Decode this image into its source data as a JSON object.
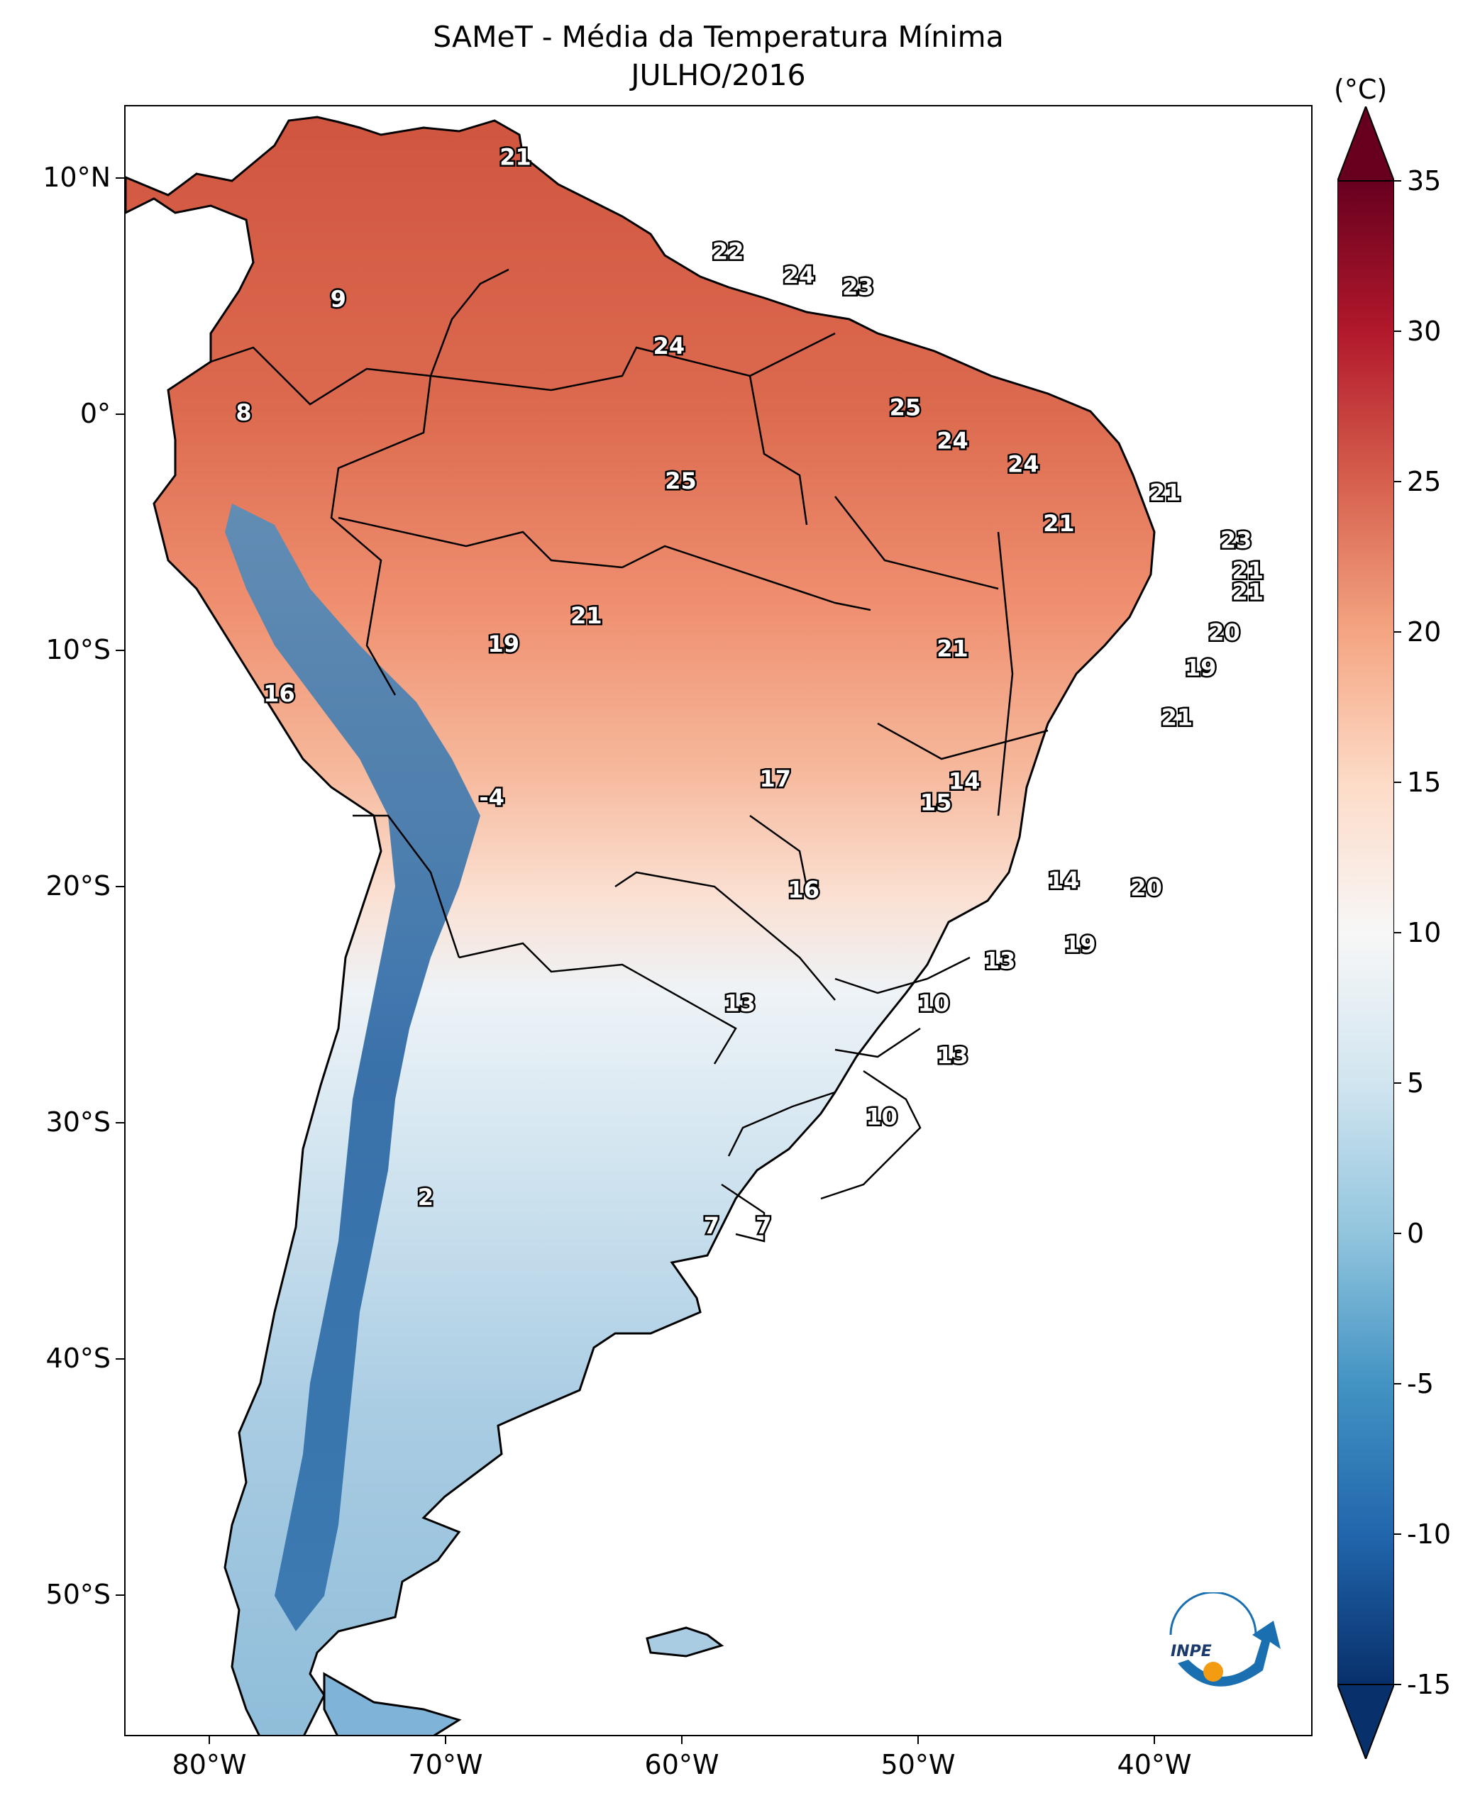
{
  "title": {
    "line1": "SAMeT - Média da Temperatura Mínima",
    "line2": "JULHO/2016"
  },
  "axes": {
    "lat_labels": [
      "10°N",
      "0°",
      "10°S",
      "20°S",
      "30°S",
      "40°S",
      "50°S"
    ],
    "lon_labels": [
      "80°W",
      "70°W",
      "60°W",
      "50°W",
      "40°W"
    ]
  },
  "colorbar": {
    "unit": "(°C)",
    "ticks": [
      "35",
      "30",
      "25",
      "20",
      "15",
      "10",
      "5",
      "0",
      "-5",
      "-10",
      "-15"
    ],
    "min": -15,
    "max": 35,
    "extend": "both",
    "colors": [
      "#08306b",
      "#2166ac",
      "#4393c3",
      "#92c5de",
      "#d1e5f0",
      "#f7f7f7",
      "#fddbc7",
      "#f4a582",
      "#d6604d",
      "#b2182b",
      "#67001f"
    ]
  },
  "map_labels": [
    {
      "value": "21",
      "lon": -67,
      "lat": 10.5
    },
    {
      "value": "22",
      "lon": -58,
      "lat": 6.5
    },
    {
      "value": "24",
      "lon": -55,
      "lat": 5.5
    },
    {
      "value": "23",
      "lon": -52.5,
      "lat": 5
    },
    {
      "value": "9",
      "lon": -74.5,
      "lat": 4.5
    },
    {
      "value": "24",
      "lon": -60.5,
      "lat": 2.5
    },
    {
      "value": "8",
      "lon": -78.5,
      "lat": -0.3
    },
    {
      "value": "25",
      "lon": -50.5,
      "lat": -0.1
    },
    {
      "value": "24",
      "lon": -48.5,
      "lat": -1.5
    },
    {
      "value": "25",
      "lon": -60,
      "lat": -3.2
    },
    {
      "value": "24",
      "lon": -45.5,
      "lat": -2.5
    },
    {
      "value": "21",
      "lon": -39.5,
      "lat": -3.7
    },
    {
      "value": "21",
      "lon": -44,
      "lat": -5
    },
    {
      "value": "23",
      "lon": -36.5,
      "lat": -5.7
    },
    {
      "value": "21",
      "lon": -36,
      "lat": -7
    },
    {
      "value": "21",
      "lon": -36,
      "lat": -7.9
    },
    {
      "value": "21",
      "lon": -64,
      "lat": -8.9
    },
    {
      "value": "20",
      "lon": -37,
      "lat": -9.6
    },
    {
      "value": "19",
      "lon": -67.5,
      "lat": -10.1
    },
    {
      "value": "21",
      "lon": -48.5,
      "lat": -10.3
    },
    {
      "value": "19",
      "lon": -38,
      "lat": -11.1
    },
    {
      "value": "16",
      "lon": -77,
      "lat": -12.2
    },
    {
      "value": "21",
      "lon": -39,
      "lat": -13.2
    },
    {
      "value": "17",
      "lon": -56,
      "lat": -15.8
    },
    {
      "value": "14",
      "lon": -48,
      "lat": -15.9
    },
    {
      "value": "15",
      "lon": -49.2,
      "lat": -16.8
    },
    {
      "value": "-4",
      "lon": -68,
      "lat": -16.6
    },
    {
      "value": "14",
      "lon": -43.8,
      "lat": -20.1
    },
    {
      "value": "20",
      "lon": -40.3,
      "lat": -20.4
    },
    {
      "value": "16",
      "lon": -54.8,
      "lat": -20.5
    },
    {
      "value": "19",
      "lon": -43.1,
      "lat": -22.8
    },
    {
      "value": "13",
      "lon": -46.5,
      "lat": -23.5
    },
    {
      "value": "13",
      "lon": -57.5,
      "lat": -25.3
    },
    {
      "value": "10",
      "lon": -49.3,
      "lat": -25.3
    },
    {
      "value": "13",
      "lon": -48.5,
      "lat": -27.5
    },
    {
      "value": "10",
      "lon": -51.5,
      "lat": -30.1
    },
    {
      "value": "2",
      "lon": -70.8,
      "lat": -33.5
    },
    {
      "value": "7",
      "lon": -58.7,
      "lat": -34.7
    },
    {
      "value": "7",
      "lon": -56.5,
      "lat": -34.7
    }
  ],
  "logo": {
    "text": "INPE"
  }
}
